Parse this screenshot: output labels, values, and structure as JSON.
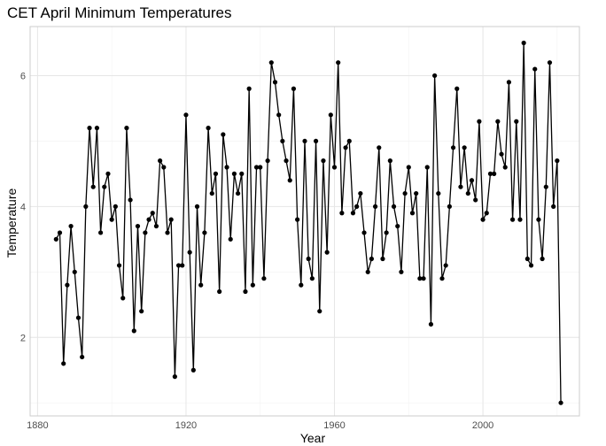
{
  "chart_data": {
    "type": "line",
    "title": "CET April Minimum Temperatures",
    "xlabel": "Year",
    "ylabel": "Temperature",
    "xlim": [
      1878,
      2026
    ],
    "ylim": [
      0.8,
      6.75
    ],
    "xticks": [
      1880,
      1920,
      1960,
      2000
    ],
    "yticks": [
      2,
      4,
      6
    ],
    "grid": true,
    "legend": "none",
    "markers": true,
    "colors": {
      "line": "#000000",
      "point": "#000000",
      "grid": "#e6e6e6"
    },
    "x": [
      1885,
      1886,
      1887,
      1888,
      1889,
      1890,
      1891,
      1892,
      1893,
      1894,
      1895,
      1896,
      1897,
      1898,
      1899,
      1900,
      1901,
      1902,
      1903,
      1904,
      1905,
      1906,
      1907,
      1908,
      1909,
      1910,
      1911,
      1912,
      1913,
      1914,
      1915,
      1916,
      1917,
      1918,
      1919,
      1920,
      1921,
      1922,
      1923,
      1924,
      1925,
      1926,
      1927,
      1928,
      1929,
      1930,
      1931,
      1932,
      1933,
      1934,
      1935,
      1936,
      1937,
      1938,
      1939,
      1940,
      1941,
      1942,
      1943,
      1944,
      1945,
      1946,
      1947,
      1948,
      1949,
      1950,
      1951,
      1952,
      1953,
      1954,
      1955,
      1956,
      1957,
      1958,
      1959,
      1960,
      1961,
      1962,
      1963,
      1964,
      1965,
      1966,
      1967,
      1968,
      1969,
      1970,
      1971,
      1972,
      1973,
      1974,
      1975,
      1976,
      1977,
      1978,
      1979,
      1980,
      1981,
      1982,
      1983,
      1984,
      1985,
      1986,
      1987,
      1988,
      1989,
      1990,
      1991,
      1992,
      1993,
      1994,
      1995,
      1996,
      1997,
      1998,
      1999,
      2000,
      2001,
      2002,
      2003,
      2004,
      2005,
      2006,
      2007,
      2008,
      2009,
      2010,
      2011,
      2012,
      2013,
      2014,
      2015,
      2016,
      2017,
      2018,
      2019,
      2020,
      2021
    ],
    "y": [
      3.5,
      3.6,
      1.6,
      2.8,
      3.7,
      3.0,
      2.3,
      1.7,
      4.0,
      5.2,
      4.3,
      5.2,
      3.6,
      4.3,
      4.5,
      3.8,
      4.0,
      3.1,
      2.6,
      5.2,
      4.1,
      2.1,
      3.7,
      2.4,
      3.6,
      3.8,
      3.9,
      3.7,
      4.7,
      4.6,
      3.6,
      3.8,
      1.4,
      3.1,
      3.1,
      5.4,
      3.3,
      1.5,
      4.0,
      2.8,
      3.6,
      5.2,
      4.2,
      4.5,
      2.7,
      5.1,
      4.6,
      3.5,
      4.5,
      4.2,
      4.5,
      2.7,
      5.8,
      2.8,
      4.6,
      4.6,
      2.9,
      4.7,
      6.2,
      5.9,
      5.4,
      5.0,
      4.7,
      4.4,
      5.8,
      3.8,
      2.8,
      5.0,
      3.2,
      2.9,
      5.0,
      2.4,
      4.7,
      3.3,
      5.4,
      4.6,
      6.2,
      3.9,
      4.9,
      5.0,
      3.9,
      4.0,
      4.2,
      3.6,
      3.0,
      3.2,
      4.0,
      4.9,
      3.2,
      3.6,
      4.7,
      4.0,
      3.7,
      3.0,
      4.2,
      4.6,
      3.9,
      4.2,
      2.9,
      2.9,
      4.6,
      2.2,
      6.0,
      4.2,
      2.9,
      3.1,
      4.0,
      4.9,
      5.8,
      4.3,
      4.9,
      4.2,
      4.4,
      4.1,
      5.3,
      3.8,
      3.9,
      4.5,
      4.5,
      5.3,
      4.8,
      4.6,
      5.9,
      3.8,
      5.3,
      3.8,
      6.5,
      3.2,
      3.1,
      6.1,
      3.8,
      3.2,
      4.3,
      6.2,
      4.0,
      4.7,
      1.0
    ]
  }
}
